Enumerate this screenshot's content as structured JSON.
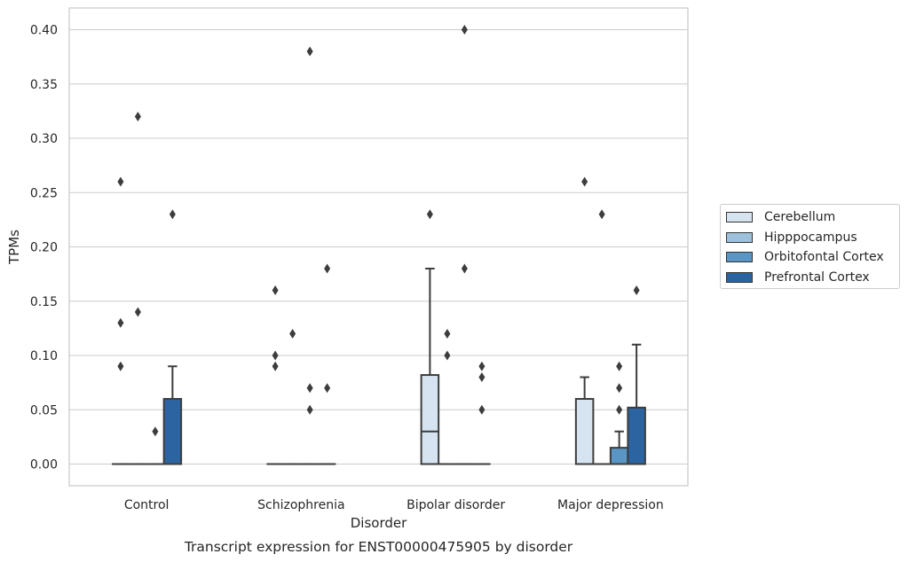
{
  "chart_data": {
    "type": "box",
    "title": "Transcript expression for ENST00000475905 by disorder",
    "xlabel": "Disorder",
    "ylabel": "TPMs",
    "categories": [
      "Control",
      "Schizophrenia",
      "Bipolar disorder",
      "Major depression"
    ],
    "ylim": [
      -0.02,
      0.42
    ],
    "yticks": [
      "0.00",
      "0.05",
      "0.10",
      "0.15",
      "0.20",
      "0.25",
      "0.30",
      "0.35",
      "0.40"
    ],
    "grid": "horizontal",
    "legend_position": "right",
    "series": [
      {
        "name": "Cerebellum",
        "color": "#d6e4f1",
        "boxes": [
          {
            "q1": 0,
            "median": 0,
            "q3": 0,
            "whisker_low": 0,
            "whisker_high": 0,
            "outliers": [
              0.09,
              0.13,
              0.26
            ]
          },
          {
            "q1": 0,
            "median": 0,
            "q3": 0,
            "whisker_low": 0,
            "whisker_high": 0,
            "outliers": [
              0.09,
              0.1,
              0.16
            ]
          },
          {
            "q1": 0,
            "median": 0.03,
            "q3": 0.082,
            "whisker_low": 0,
            "whisker_high": 0.18,
            "outliers": [
              0.23
            ]
          },
          {
            "q1": 0,
            "median": 0,
            "q3": 0.06,
            "whisker_low": 0,
            "whisker_high": 0.08,
            "outliers": [
              0.26
            ]
          }
        ]
      },
      {
        "name": "Hipppocampus",
        "color": "#9dc1dc",
        "boxes": [
          {
            "q1": 0,
            "median": 0,
            "q3": 0,
            "whisker_low": 0,
            "whisker_high": 0,
            "outliers": [
              0.14,
              0.32
            ]
          },
          {
            "q1": 0,
            "median": 0,
            "q3": 0,
            "whisker_low": 0,
            "whisker_high": 0,
            "outliers": [
              0.12
            ]
          },
          {
            "q1": 0,
            "median": 0,
            "q3": 0,
            "whisker_low": 0,
            "whisker_high": 0,
            "outliers": [
              0.1,
              0.12
            ]
          },
          {
            "q1": 0,
            "median": 0,
            "q3": 0,
            "whisker_low": 0,
            "whisker_high": 0,
            "outliers": [
              0.23
            ]
          }
        ]
      },
      {
        "name": "Orbitofontal Cortex",
        "color": "#5995c5",
        "boxes": [
          {
            "q1": 0,
            "median": 0,
            "q3": 0,
            "whisker_low": 0,
            "whisker_high": 0,
            "outliers": [
              0.03
            ]
          },
          {
            "q1": 0,
            "median": 0,
            "q3": 0,
            "whisker_low": 0,
            "whisker_high": 0,
            "outliers": [
              0.05,
              0.07,
              0.38
            ]
          },
          {
            "q1": 0,
            "median": 0,
            "q3": 0,
            "whisker_low": 0,
            "whisker_high": 0,
            "outliers": [
              0.18,
              0.4
            ]
          },
          {
            "q1": 0,
            "median": 0,
            "q3": 0.015,
            "whisker_low": 0,
            "whisker_high": 0.03,
            "outliers": [
              0.05,
              0.07,
              0.09
            ]
          }
        ]
      },
      {
        "name": "Prefrontal Cortex",
        "color": "#2b64a1",
        "boxes": [
          {
            "q1": 0,
            "median": 0,
            "q3": 0.06,
            "whisker_low": 0,
            "whisker_high": 0.09,
            "outliers": [
              0.23
            ]
          },
          {
            "q1": 0,
            "median": 0,
            "q3": 0,
            "whisker_low": 0,
            "whisker_high": 0,
            "outliers": [
              0.07,
              0.18
            ]
          },
          {
            "q1": 0,
            "median": 0,
            "q3": 0,
            "whisker_low": 0,
            "whisker_high": 0,
            "outliers": [
              0.05,
              0.08,
              0.09
            ]
          },
          {
            "q1": 0,
            "median": 0,
            "q3": 0.052,
            "whisker_low": 0,
            "whisker_high": 0.11,
            "outliers": [
              0.16
            ]
          }
        ]
      }
    ]
  }
}
